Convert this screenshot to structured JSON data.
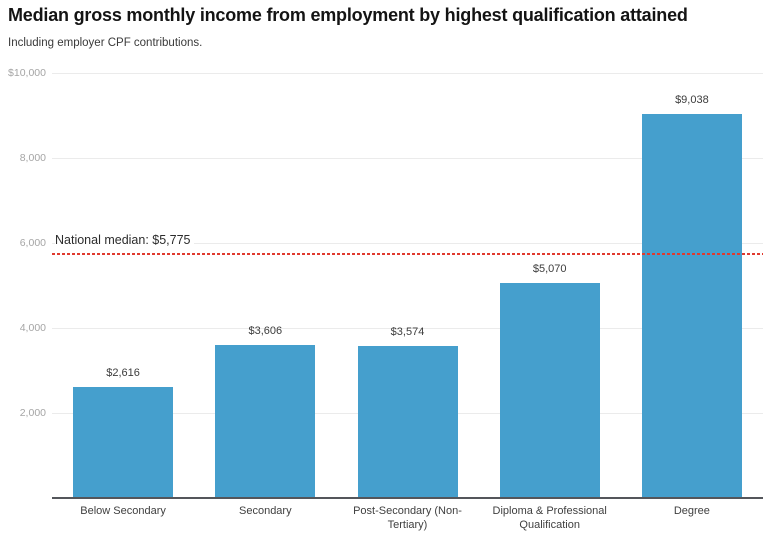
{
  "header": {
    "title": "Median gross monthly income from employment by highest qualification attained",
    "subtitle": "Including employer CPF contributions."
  },
  "chart_data": {
    "type": "bar",
    "categories": [
      "Below Secondary",
      "Secondary",
      "Post-Secondary (Non-Tertiary)",
      "Diploma & Professional Qualification",
      "Degree"
    ],
    "values": [
      2616,
      3606,
      3574,
      5070,
      9038
    ],
    "value_labels": [
      "$2,616",
      "$3,606",
      "$3,574",
      "$5,070",
      "$9,038"
    ],
    "title": "Median gross monthly income from employment by highest qualification attained",
    "subtitle": "Including employer CPF contributions.",
    "xlabel": "",
    "ylabel": "",
    "ylim": [
      0,
      10000
    ],
    "grid": true,
    "yticks": [
      {
        "label": "$10,000",
        "value": 10000
      },
      {
        "label": "8,000",
        "value": 8000
      },
      {
        "label": "6,000",
        "value": 6000
      },
      {
        "label": "4,000",
        "value": 4000
      },
      {
        "label": "2,000",
        "value": 2000
      }
    ],
    "reference_line": {
      "label": "National median: $5,775",
      "value": 5775,
      "style": "dashed",
      "color": "#e0392e"
    },
    "bar_color": "#459fcd",
    "legend": "none"
  },
  "colors": {
    "bar": "#459fcd",
    "reference": "#e0392e",
    "gridline": "#ebebeb",
    "axis": "#54565b"
  }
}
